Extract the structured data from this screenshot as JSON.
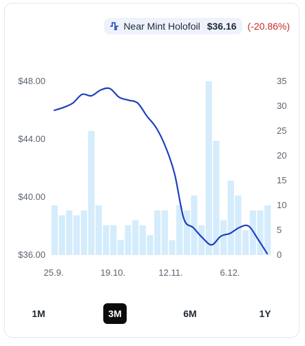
{
  "legend": {
    "icon": "line-series-icon",
    "series_name": "Near Mint Holofoil",
    "price": "$36.16",
    "change": "(-20.86%)",
    "change_color": "#c62828"
  },
  "timeframes": [
    {
      "label": "1M",
      "active": false
    },
    {
      "label": "3M",
      "active": true
    },
    {
      "label": "6M",
      "active": false
    },
    {
      "label": "1Y",
      "active": false
    }
  ],
  "chart_data": {
    "type": "line",
    "series": [
      {
        "name": "Near Mint Holofoil",
        "axis": "left",
        "color": "#1f3fc0",
        "values": [
          46.0,
          46.2,
          46.5,
          47.1,
          47.0,
          47.4,
          47.5,
          46.9,
          46.7,
          46.5,
          45.6,
          44.8,
          43.5,
          41.6,
          38.5,
          37.9,
          37.2,
          36.7,
          37.3,
          37.5,
          37.9,
          38.0,
          37.1,
          36.1
        ]
      }
    ],
    "bars": {
      "axis": "right",
      "color": "#d4ecfb",
      "values": [
        10,
        8,
        9,
        8,
        9,
        25,
        10,
        6,
        6,
        3,
        6,
        7,
        6,
        4,
        9,
        9,
        3,
        10,
        9,
        12,
        6,
        35,
        23,
        7,
        15,
        12,
        5,
        9,
        9,
        10
      ]
    },
    "x_ticks": [
      "25.9.",
      "19.10.",
      "12.11.",
      "6.12."
    ],
    "y_left": {
      "ticks": [
        "$36.00",
        "$40.00",
        "$44.00",
        "$48.00"
      ],
      "min": 36,
      "max": 48
    },
    "y_right": {
      "ticks": [
        "0",
        "5",
        "10",
        "15",
        "20",
        "25",
        "30",
        "35"
      ],
      "min": 0,
      "max": 35
    },
    "grid": false
  }
}
